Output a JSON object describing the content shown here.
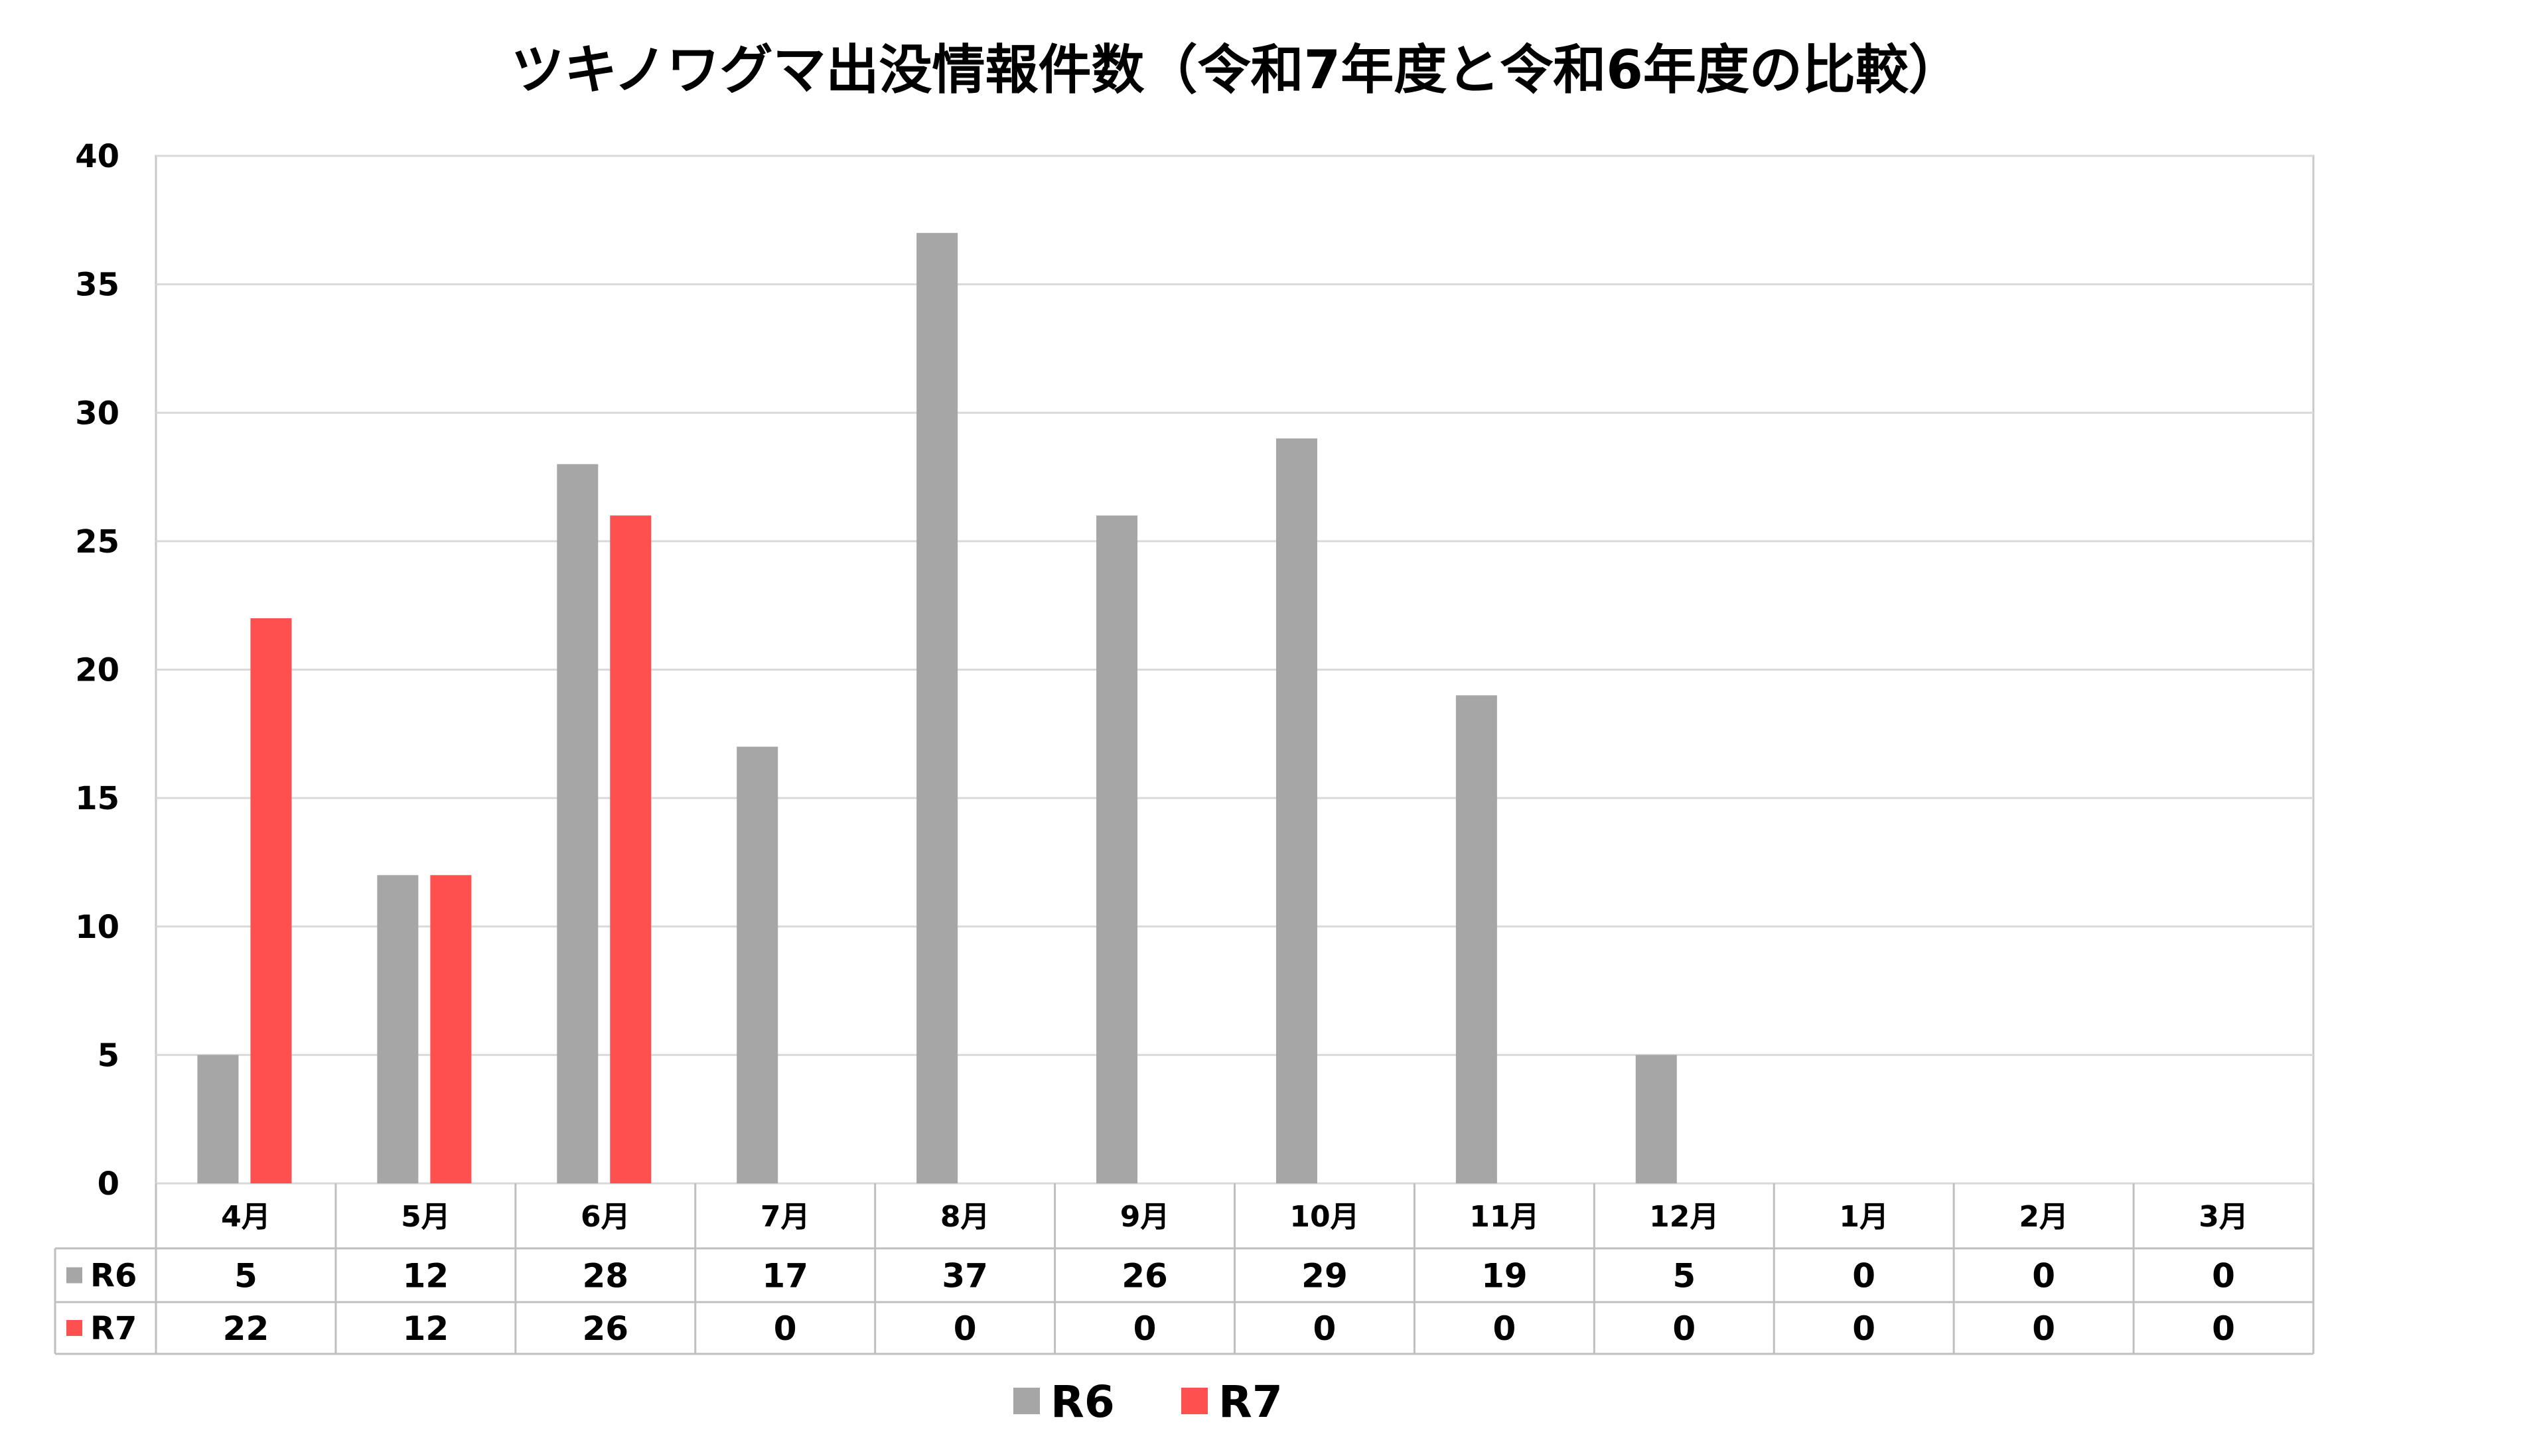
{
  "chart_data": {
    "type": "bar",
    "title": "ツキノワグマ出没情報件数（令和7年度と令和6年度の比較）",
    "categories": [
      "4月",
      "5月",
      "6月",
      "7月",
      "8月",
      "9月",
      "10月",
      "11月",
      "12月",
      "1月",
      "2月",
      "3月"
    ],
    "series": [
      {
        "name": "R6",
        "color": "#a6a6a6",
        "values": [
          5,
          12,
          28,
          17,
          37,
          26,
          29,
          19,
          5,
          0,
          0,
          0
        ]
      },
      {
        "name": "R7",
        "color": "#ff5050",
        "values": [
          22,
          12,
          26,
          0,
          0,
          0,
          0,
          0,
          0,
          0,
          0,
          0
        ]
      }
    ],
    "ylim": [
      0,
      40
    ],
    "yticks": [
      0,
      5,
      10,
      15,
      20,
      25,
      30,
      35,
      40
    ],
    "grid": true,
    "data_table": true,
    "legend": "bottom"
  }
}
